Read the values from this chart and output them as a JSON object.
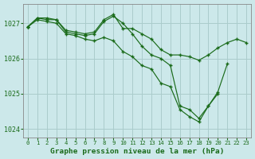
{
  "background_color": "#cce8ea",
  "grid_color": "#aacccc",
  "line_color": "#1a6b1a",
  "text_color": "#1a6b1a",
  "xlabel": "Graphe pression niveau de la mer (hPa)",
  "ylim": [
    1023.75,
    1027.55
  ],
  "xlim": [
    -0.5,
    23.5
  ],
  "yticks": [
    1024,
    1025,
    1026,
    1027
  ],
  "xticks": [
    0,
    1,
    2,
    3,
    4,
    5,
    6,
    7,
    8,
    9,
    10,
    11,
    12,
    13,
    14,
    15,
    16,
    17,
    18,
    19,
    20,
    21,
    22,
    23
  ],
  "series": [
    {
      "x": [
        0,
        1,
        2,
        3,
        4,
        5,
        6,
        7,
        8,
        9,
        10,
        11,
        12,
        13,
        14,
        15,
        16,
        17,
        18,
        19,
        20,
        21,
        22,
        23
      ],
      "y": [
        1026.9,
        1027.15,
        1027.15,
        1027.1,
        1026.8,
        1026.75,
        1026.7,
        1026.75,
        1027.1,
        1027.25,
        1026.85,
        1026.85,
        1026.7,
        1026.55,
        1026.25,
        1026.1,
        1026.1,
        1026.05,
        1025.95,
        1026.1,
        1026.3,
        1026.45,
        1026.55,
        1026.45
      ]
    },
    {
      "x": [
        0,
        1,
        2,
        3,
        4,
        5,
        6,
        7,
        8,
        9,
        10,
        11,
        12,
        13,
        14,
        15,
        16,
        17,
        18,
        19,
        20,
        21
      ],
      "y": [
        1026.9,
        1027.15,
        1027.1,
        1027.1,
        1026.75,
        1026.7,
        1026.65,
        1026.7,
        1027.05,
        1027.2,
        1027.0,
        1026.7,
        1026.35,
        1026.1,
        1026.0,
        1025.8,
        1024.65,
        1024.55,
        1024.3,
        1024.65,
        1025.05,
        1025.85
      ]
    },
    {
      "x": [
        0,
        1,
        2,
        3,
        4,
        5,
        6,
        7,
        8,
        9,
        10,
        11,
        12,
        13,
        14,
        15,
        16,
        17,
        18,
        19,
        20
      ],
      "y": [
        1026.9,
        1027.1,
        1027.05,
        1027.0,
        1026.7,
        1026.65,
        1026.55,
        1026.5,
        1026.6,
        1026.5,
        1026.2,
        1026.05,
        1025.8,
        1025.7,
        1025.3,
        1025.2,
        1024.55,
        1024.35,
        1024.2,
        1024.65,
        1025.0
      ]
    }
  ]
}
